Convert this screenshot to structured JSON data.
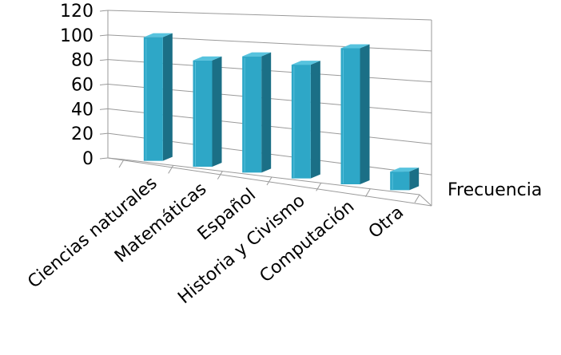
{
  "chart_data": {
    "type": "bar",
    "title": "",
    "categories": [
      "Ciencias naturales",
      "Matemáticas",
      "Español",
      "Historia y Civismo",
      "Computación",
      "Otra"
    ],
    "series": [
      {
        "name": "Frecuencia",
        "values": [
          100,
          86,
          94,
          92,
          110,
          15
        ]
      }
    ],
    "y_ticks": [
      "0",
      "20",
      "40",
      "60",
      "80",
      "100",
      "120"
    ],
    "ylim": [
      0,
      120
    ],
    "grid": true,
    "legend": "none",
    "colors": {
      "bar_front": "#2ea7c7",
      "bar_side": "#1b6f86",
      "bar_top": "#57c3de",
      "grid": "#9a9a9a"
    }
  }
}
